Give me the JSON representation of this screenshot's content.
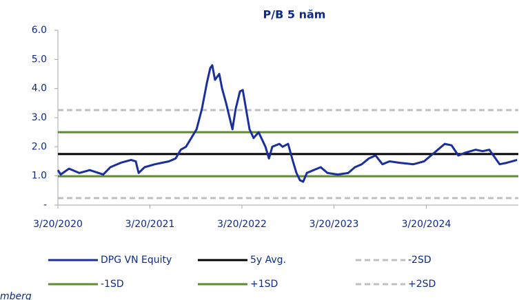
{
  "chart_data": {
    "type": "line",
    "title": "P/B 5 năm",
    "x": [
      "2020-03-20",
      "2020-03-31",
      "2020-05-03",
      "2020-06-13",
      "2020-07-24",
      "2020-09-16",
      "2020-10-14",
      "2020-11-24",
      "2021-01-04",
      "2021-01-23",
      "2021-02-03",
      "2021-02-27",
      "2021-04-09",
      "2021-06-03",
      "2021-06-30",
      "2021-07-20",
      "2021-08-10",
      "2021-09-21",
      "2021-10-12",
      "2021-11-01",
      "2021-11-14",
      "2021-11-22",
      "2021-12-03",
      "2021-12-20",
      "2021-12-31",
      "2022-01-16",
      "2022-01-30",
      "2022-02-10",
      "2022-02-23",
      "2022-03-12",
      "2022-03-23",
      "2022-04-05",
      "2022-04-19",
      "2022-05-05",
      "2022-05-25",
      "2022-06-21",
      "2022-07-05",
      "2022-07-18",
      "2022-08-15",
      "2022-08-28",
      "2022-09-19",
      "2022-10-08",
      "2022-10-22",
      "2022-11-05",
      "2022-11-18",
      "2022-12-02",
      "2022-12-29",
      "2023-01-26",
      "2023-02-22",
      "2023-04-04",
      "2023-05-15",
      "2023-06-11",
      "2023-07-08",
      "2023-08-05",
      "2023-09-01",
      "2023-09-28",
      "2023-10-26",
      "2023-12-06",
      "2024-01-29",
      "2024-03-11",
      "2024-04-21",
      "2024-06-01",
      "2024-06-28",
      "2024-07-25",
      "2024-08-22",
      "2024-10-02",
      "2024-10-29",
      "2024-11-25",
      "2025-01-05",
      "2025-02-02",
      "2025-03-15"
    ],
    "series": [
      {
        "name": "DPG VN Equity",
        "color": "#1a2f9c",
        "values": [
          1.2,
          1.05,
          1.25,
          1.1,
          1.2,
          1.05,
          1.3,
          1.45,
          1.55,
          1.5,
          1.1,
          1.3,
          1.4,
          1.5,
          1.6,
          1.9,
          2.0,
          2.6,
          3.3,
          4.2,
          4.7,
          4.8,
          4.3,
          4.5,
          4.0,
          3.5,
          3.0,
          2.6,
          3.3,
          3.9,
          3.95,
          3.3,
          2.6,
          2.3,
          2.5,
          2.0,
          1.6,
          2.0,
          2.1,
          2.0,
          2.1,
          1.5,
          1.1,
          0.85,
          0.8,
          1.1,
          1.2,
          1.3,
          1.1,
          1.05,
          1.1,
          1.3,
          1.4,
          1.6,
          1.7,
          1.4,
          1.5,
          1.45,
          1.4,
          1.5,
          1.8,
          2.1,
          2.05,
          1.7,
          1.8,
          1.9,
          1.85,
          1.9,
          1.4,
          1.45,
          1.55
        ]
      }
    ],
    "reference_lines": [
      {
        "name": "5y Avg.",
        "value": 1.75,
        "color": "#000000",
        "dashed": false
      },
      {
        "name": "-2SD",
        "value": 0.24,
        "color": "#bfbfbf",
        "dashed": true
      },
      {
        "name": "-1SD",
        "value": 0.99,
        "color": "#5b8c32",
        "dashed": false
      },
      {
        "name": "+1SD",
        "value": 2.5,
        "color": "#5b8c32",
        "dashed": false
      },
      {
        "name": "+2SD",
        "value": 3.26,
        "color": "#bfbfbf",
        "dashed": true
      }
    ],
    "xlim": [
      "2020-03-20",
      "2025-03-20"
    ],
    "xticks": [
      {
        "value": "2020-03-20",
        "label": "3/20/2020"
      },
      {
        "value": "2021-03-20",
        "label": "3/20/2021"
      },
      {
        "value": "2022-03-20",
        "label": "3/20/2022"
      },
      {
        "value": "2023-03-20",
        "label": "3/20/2023"
      },
      {
        "value": "2024-03-20",
        "label": "3/20/2024"
      }
    ],
    "ylim": [
      0,
      6
    ],
    "yticks": [
      {
        "value": 0,
        "label": "-"
      },
      {
        "value": 1,
        "label": "1.0"
      },
      {
        "value": 2,
        "label": "2.0"
      },
      {
        "value": 3,
        "label": "3.0"
      },
      {
        "value": 4,
        "label": "4.0"
      },
      {
        "value": 5,
        "label": "5.0"
      },
      {
        "value": 6,
        "label": "6.0"
      }
    ],
    "source": "mberg"
  }
}
